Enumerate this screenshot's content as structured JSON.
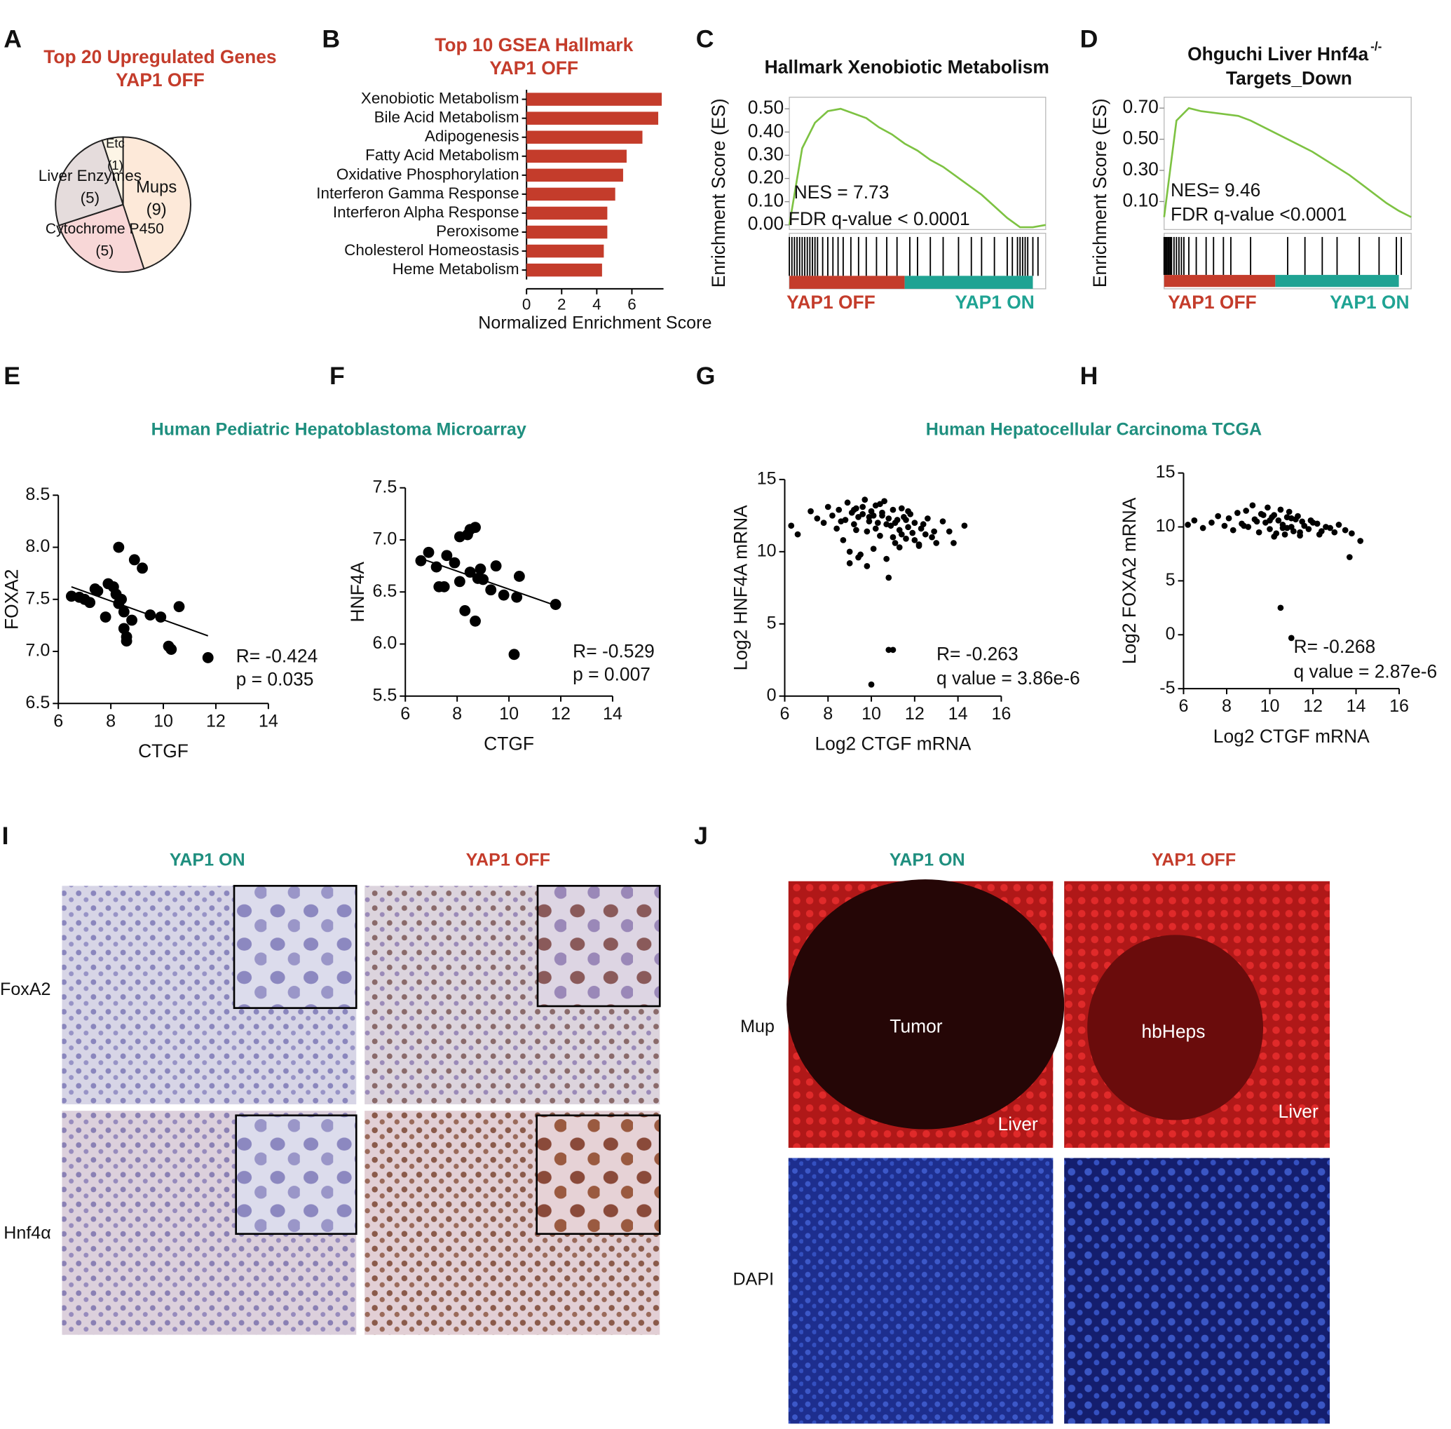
{
  "panel_labels": [
    "A",
    "B",
    "C",
    "D",
    "E",
    "F",
    "G",
    "H",
    "I",
    "J"
  ],
  "section_titles": [
    "Human Pediatric Hepatoblastoma Microarray",
    "Human Hepatocellular Carcinoma TCGA"
  ],
  "chart_data": [
    {
      "type": "pie",
      "title": "Top 20 Upregulated Genes",
      "subtitle": "YAP1 OFF",
      "categories": [
        "Mups",
        "Cytochrome P450",
        "Liver Enzymes",
        "Etc"
      ],
      "values": [
        9,
        5,
        5,
        1
      ],
      "value_labels": [
        "(9)",
        "(5)",
        "(5)",
        "(1)"
      ],
      "colors": [
        "#fde9d9",
        "#f8d7d7",
        "#e5dcdc",
        "#fdf5e6"
      ]
    },
    {
      "type": "bar",
      "title": "Top 10 GSEA Hallmark",
      "subtitle": "YAP1 OFF",
      "categories": [
        "Xenobiotic Metabolism",
        "Bile Acid Metabolism",
        "Adipogenesis",
        "Fatty Acid Metabolism",
        "Oxidative Phosphorylation",
        "Interferon Gamma Response",
        "Interferon Alpha Response",
        "Peroxisome",
        "Cholesterol Homeostasis",
        "Heme Metabolism"
      ],
      "values": [
        7.7,
        7.5,
        6.6,
        5.7,
        5.5,
        5.05,
        4.6,
        4.6,
        4.4,
        4.3
      ],
      "color": "#c43c2b",
      "xlim": [
        0,
        7.8
      ],
      "xticks": [
        0,
        2,
        4,
        6
      ],
      "xlabel": "Normalized Enrichment Score"
    },
    {
      "type": "line",
      "title": "Hallmark Xenobiotic Metabolism",
      "ylabel": "Enrichment Score (ES)",
      "values": [
        0.0,
        0.33,
        0.44,
        0.49,
        0.5,
        0.48,
        0.46,
        0.42,
        0.39,
        0.35,
        0.32,
        0.28,
        0.25,
        0.21,
        0.17,
        0.13,
        0.08,
        0.03,
        -0.01,
        -0.01,
        0.0
      ],
      "color": "#7dc242",
      "ylim": [
        -0.02,
        0.55
      ],
      "yticks": [
        {
          "value": 0,
          "label": "0.00"
        },
        {
          "value": 0.1,
          "label": "0.10"
        },
        {
          "value": 0.2,
          "label": "0.20"
        },
        {
          "value": 0.3,
          "label": "0.30"
        },
        {
          "value": 0.4,
          "label": "0.40"
        },
        {
          "value": 0.5,
          "label": "0.50"
        }
      ],
      "hits": [
        0.0,
        0.01,
        0.02,
        0.03,
        0.04,
        0.05,
        0.06,
        0.07,
        0.08,
        0.09,
        0.1,
        0.11,
        0.13,
        0.15,
        0.17,
        0.19,
        0.21,
        0.24,
        0.27,
        0.3,
        0.34,
        0.38,
        0.42,
        0.47,
        0.5,
        0.55,
        0.6,
        0.66,
        0.71,
        0.75,
        0.8,
        0.85,
        0.87,
        0.89,
        0.9,
        0.91,
        0.92,
        0.93,
        0.95,
        0.97
      ],
      "groups": [
        {
          "name": "YAP1 OFF",
          "color": "#c43c2b"
        },
        {
          "name": "YAP1 ON",
          "color": "#1fa393"
        }
      ],
      "annotations": [
        "NES = 7.73",
        "FDR q-value < 0.0001"
      ]
    },
    {
      "type": "line",
      "title": "Ohguchi Liver Hnf4a",
      "title_superscript": "-/-",
      "subtitle": "Targets_Down",
      "ylabel": "Enrichment Score (ES)",
      "values": [
        0.0,
        0.62,
        0.7,
        0.68,
        0.67,
        0.66,
        0.65,
        0.62,
        0.58,
        0.54,
        0.5,
        0.46,
        0.42,
        0.37,
        0.32,
        0.27,
        0.21,
        0.15,
        0.09,
        0.04,
        0.0
      ],
      "color": "#7dc242",
      "ylim": [
        -0.08,
        0.77
      ],
      "yticks": [
        {
          "value": 0.1,
          "label": "0.10"
        },
        {
          "value": 0.3,
          "label": "0.30"
        },
        {
          "value": 0.5,
          "label": "0.50"
        },
        {
          "value": 0.7,
          "label": "0.70"
        }
      ],
      "hits": [
        0.0,
        0.005,
        0.01,
        0.015,
        0.02,
        0.025,
        0.03,
        0.04,
        0.05,
        0.06,
        0.07,
        0.08,
        0.1,
        0.13,
        0.17,
        0.2,
        0.24,
        0.27,
        0.35,
        0.5,
        0.57,
        0.64,
        0.7,
        0.79,
        0.87,
        0.94,
        0.96
      ],
      "groups": [
        {
          "name": "YAP1 OFF",
          "color": "#c43c2b"
        },
        {
          "name": "YAP1 ON",
          "color": "#1fa393"
        }
      ],
      "annotations": [
        "NES= 9.46",
        "FDR q-value <0.0001"
      ]
    },
    {
      "type": "scatter",
      "xlabel": "CTGF",
      "ylabel": "FOXA2",
      "x": [
        6.5,
        6.8,
        7.2,
        7.4,
        7.5,
        7.8,
        7.9,
        8.1,
        8.3,
        8.3,
        8.4,
        8.5,
        8.5,
        8.6,
        8.6,
        8.9,
        9.2,
        8.8,
        9.5,
        9.9,
        10.2,
        10.3,
        10.6,
        11.7,
        8.2,
        7.0
      ],
      "y": [
        7.53,
        7.52,
        7.47,
        7.6,
        7.58,
        7.33,
        7.65,
        7.62,
        8.0,
        7.46,
        7.5,
        7.22,
        7.38,
        7.14,
        7.1,
        7.88,
        7.8,
        7.3,
        7.35,
        7.33,
        7.05,
        7.02,
        7.43,
        6.94,
        7.55,
        7.5
      ],
      "trend": {
        "x": [
          6.5,
          11.7
        ],
        "y": [
          7.62,
          7.15
        ]
      },
      "color": "#000000",
      "xlim": [
        6,
        14
      ],
      "xticks": [
        6,
        8,
        10,
        12,
        14
      ],
      "ylim": [
        6.5,
        8.5
      ],
      "yticks": [
        6.5,
        {
          "value": 7,
          "label": "7.0"
        },
        7.5,
        {
          "value": 8,
          "label": "8.0"
        },
        8.5
      ],
      "annotations": [
        "R= -0.424",
        "p = 0.035"
      ]
    },
    {
      "type": "scatter",
      "xlabel": "CTGF",
      "ylabel": "HNF4A",
      "x": [
        6.6,
        6.9,
        7.2,
        7.3,
        7.5,
        7.6,
        7.9,
        8.1,
        8.1,
        8.3,
        8.4,
        8.5,
        8.5,
        8.7,
        8.8,
        8.7,
        9.0,
        9.3,
        9.5,
        9.8,
        10.2,
        10.3,
        10.4,
        11.8,
        8.9
      ],
      "y": [
        6.8,
        6.88,
        6.74,
        6.55,
        6.55,
        6.85,
        6.78,
        6.6,
        7.03,
        6.32,
        7.05,
        6.69,
        7.1,
        7.12,
        6.63,
        6.22,
        6.62,
        6.52,
        6.75,
        6.47,
        5.9,
        6.45,
        6.65,
        6.38,
        6.72
      ],
      "trend": {
        "x": [
          6.5,
          11.8
        ],
        "y": [
          6.83,
          6.37
        ]
      },
      "color": "#000000",
      "xlim": [
        6,
        14
      ],
      "xticks": [
        6,
        8,
        10,
        12,
        14
      ],
      "ylim": [
        5.5,
        7.5
      ],
      "yticks": [
        5.5,
        {
          "value": 6,
          "label": "6.0"
        },
        6.5,
        {
          "value": 7,
          "label": "7.0"
        },
        7.5
      ],
      "annotations": [
        "R= -0.529",
        "p = 0.007"
      ]
    },
    {
      "type": "scatter",
      "xlabel": "Log2 CTGF mRNA",
      "ylabel": "Log2 HNF4A mRNA",
      "x": [
        6.3,
        6.6,
        7.2,
        7.5,
        7.8,
        8.0,
        8.2,
        8.4,
        8.5,
        8.7,
        8.8,
        8.9,
        9.0,
        9.1,
        9.2,
        9.3,
        9.4,
        9.5,
        9.6,
        9.7,
        9.8,
        9.9,
        10.0,
        10.1,
        10.2,
        10.3,
        10.4,
        10.5,
        10.6,
        10.7,
        10.8,
        10.9,
        11.0,
        11.1,
        11.2,
        11.3,
        11.4,
        11.5,
        11.6,
        11.7,
        11.8,
        11.9,
        12.0,
        12.2,
        12.4,
        12.6,
        12.8,
        13.0,
        13.3,
        13.6,
        14.3,
        9.0,
        9.3,
        9.6,
        9.9,
        10.2,
        10.5,
        10.8,
        11.1,
        11.4,
        11.7,
        12.0,
        12.3,
        9.2,
        9.8,
        10.4,
        11.0,
        11.6,
        12.2,
        8.6,
        9.4,
        10.1,
        10.7,
        11.3,
        12.5,
        10.8,
        11.0,
        10.0,
        12.9,
        13.8
      ],
      "y": [
        11.8,
        11.2,
        12.8,
        12.3,
        12.0,
        13.1,
        12.5,
        11.6,
        12.9,
        10.8,
        12.2,
        13.4,
        9.2,
        12.7,
        11.9,
        13.0,
        12.4,
        9.8,
        12.6,
        13.6,
        11.4,
        12.1,
        12.8,
        10.2,
        13.2,
        12.0,
        11.1,
        12.5,
        13.5,
        9.5,
        12.3,
        11.8,
        12.9,
        10.6,
        12.2,
        11.5,
        13.0,
        12.4,
        10.9,
        11.7,
        12.6,
        11.3,
        12.0,
        10.4,
        11.9,
        12.3,
        11.0,
        10.6,
        12.1,
        11.4,
        11.8,
        10.0,
        11.5,
        13.1,
        12.4,
        11.6,
        12.7,
        8.2,
        12.0,
        11.2,
        12.8,
        10.8,
        11.6,
        12.9,
        9.0,
        13.3,
        11.0,
        12.2,
        10.5,
        12.1,
        9.6,
        12.5,
        11.9,
        10.3,
        11.2,
        3.2,
        3.2,
        0.8,
        11.4,
        10.6
      ],
      "color": "#000000",
      "xlim": [
        6,
        16
      ],
      "xticks": [
        6,
        8,
        10,
        12,
        14,
        16
      ],
      "ylim": [
        0,
        15
      ],
      "yticks": [
        0,
        5,
        10,
        15
      ],
      "annotations": [
        "R= -0.263",
        "q value = 3.86e-6"
      ]
    },
    {
      "type": "scatter",
      "xlabel": "Log2 CTGF mRNA",
      "ylabel": "Log2 FOXA2 mRNA",
      "x": [
        6.2,
        6.5,
        6.9,
        7.3,
        7.6,
        7.9,
        8.1,
        8.3,
        8.5,
        8.7,
        8.9,
        9.0,
        9.2,
        9.3,
        9.5,
        9.6,
        9.8,
        9.9,
        10.0,
        10.1,
        10.2,
        10.3,
        10.4,
        10.5,
        10.6,
        10.7,
        10.8,
        10.9,
        11.0,
        11.1,
        11.2,
        11.3,
        11.4,
        11.5,
        11.6,
        11.8,
        12.0,
        12.2,
        12.4,
        12.6,
        12.8,
        13.0,
        13.2,
        13.5,
        13.8,
        14.2,
        9.4,
        9.7,
        10.2,
        10.6,
        11.0,
        11.4,
        11.9,
        12.3,
        8.8,
        10.0,
        10.8,
        10.5,
        11.0,
        13.7
      ],
      "y": [
        10.2,
        10.6,
        9.9,
        10.4,
        11.0,
        10.1,
        10.8,
        9.7,
        11.3,
        10.3,
        11.5,
        10.0,
        12.0,
        10.7,
        9.5,
        11.2,
        10.4,
        11.8,
        9.8,
        10.9,
        11.1,
        9.4,
        10.6,
        11.6,
        10.2,
        9.3,
        10.9,
        11.4,
        10.0,
        9.6,
        10.7,
        11.0,
        9.2,
        10.5,
        10.1,
        9.8,
        10.4,
        10.3,
        9.6,
        10.0,
        9.9,
        9.5,
        10.2,
        9.7,
        9.4,
        8.7,
        10.5,
        11.1,
        9.1,
        9.9,
        10.8,
        9.5,
        10.6,
        9.3,
        10.1,
        10.6,
        9.9,
        2.5,
        -0.3,
        7.2
      ],
      "color": "#000000",
      "xlim": [
        6,
        16
      ],
      "xticks": [
        6,
        8,
        10,
        12,
        14,
        16
      ],
      "ylim": [
        -5,
        15
      ],
      "yticks": [
        -5,
        0,
        5,
        10,
        15
      ],
      "annotations": [
        "R= -0.268",
        "q value = 2.87e-6"
      ]
    }
  ],
  "ihc": {
    "columns": [
      "YAP1 ON",
      "YAP1 OFF"
    ],
    "rows": [
      "FoxA2",
      "Hnf4α"
    ]
  },
  "immunofluorescence": {
    "columns": [
      "YAP1 ON",
      "YAP1 OFF"
    ],
    "rows": [
      "Mup",
      "DAPI"
    ],
    "image_labels": [
      "Tumor",
      "Liver",
      "hbHeps",
      "Liver"
    ]
  }
}
